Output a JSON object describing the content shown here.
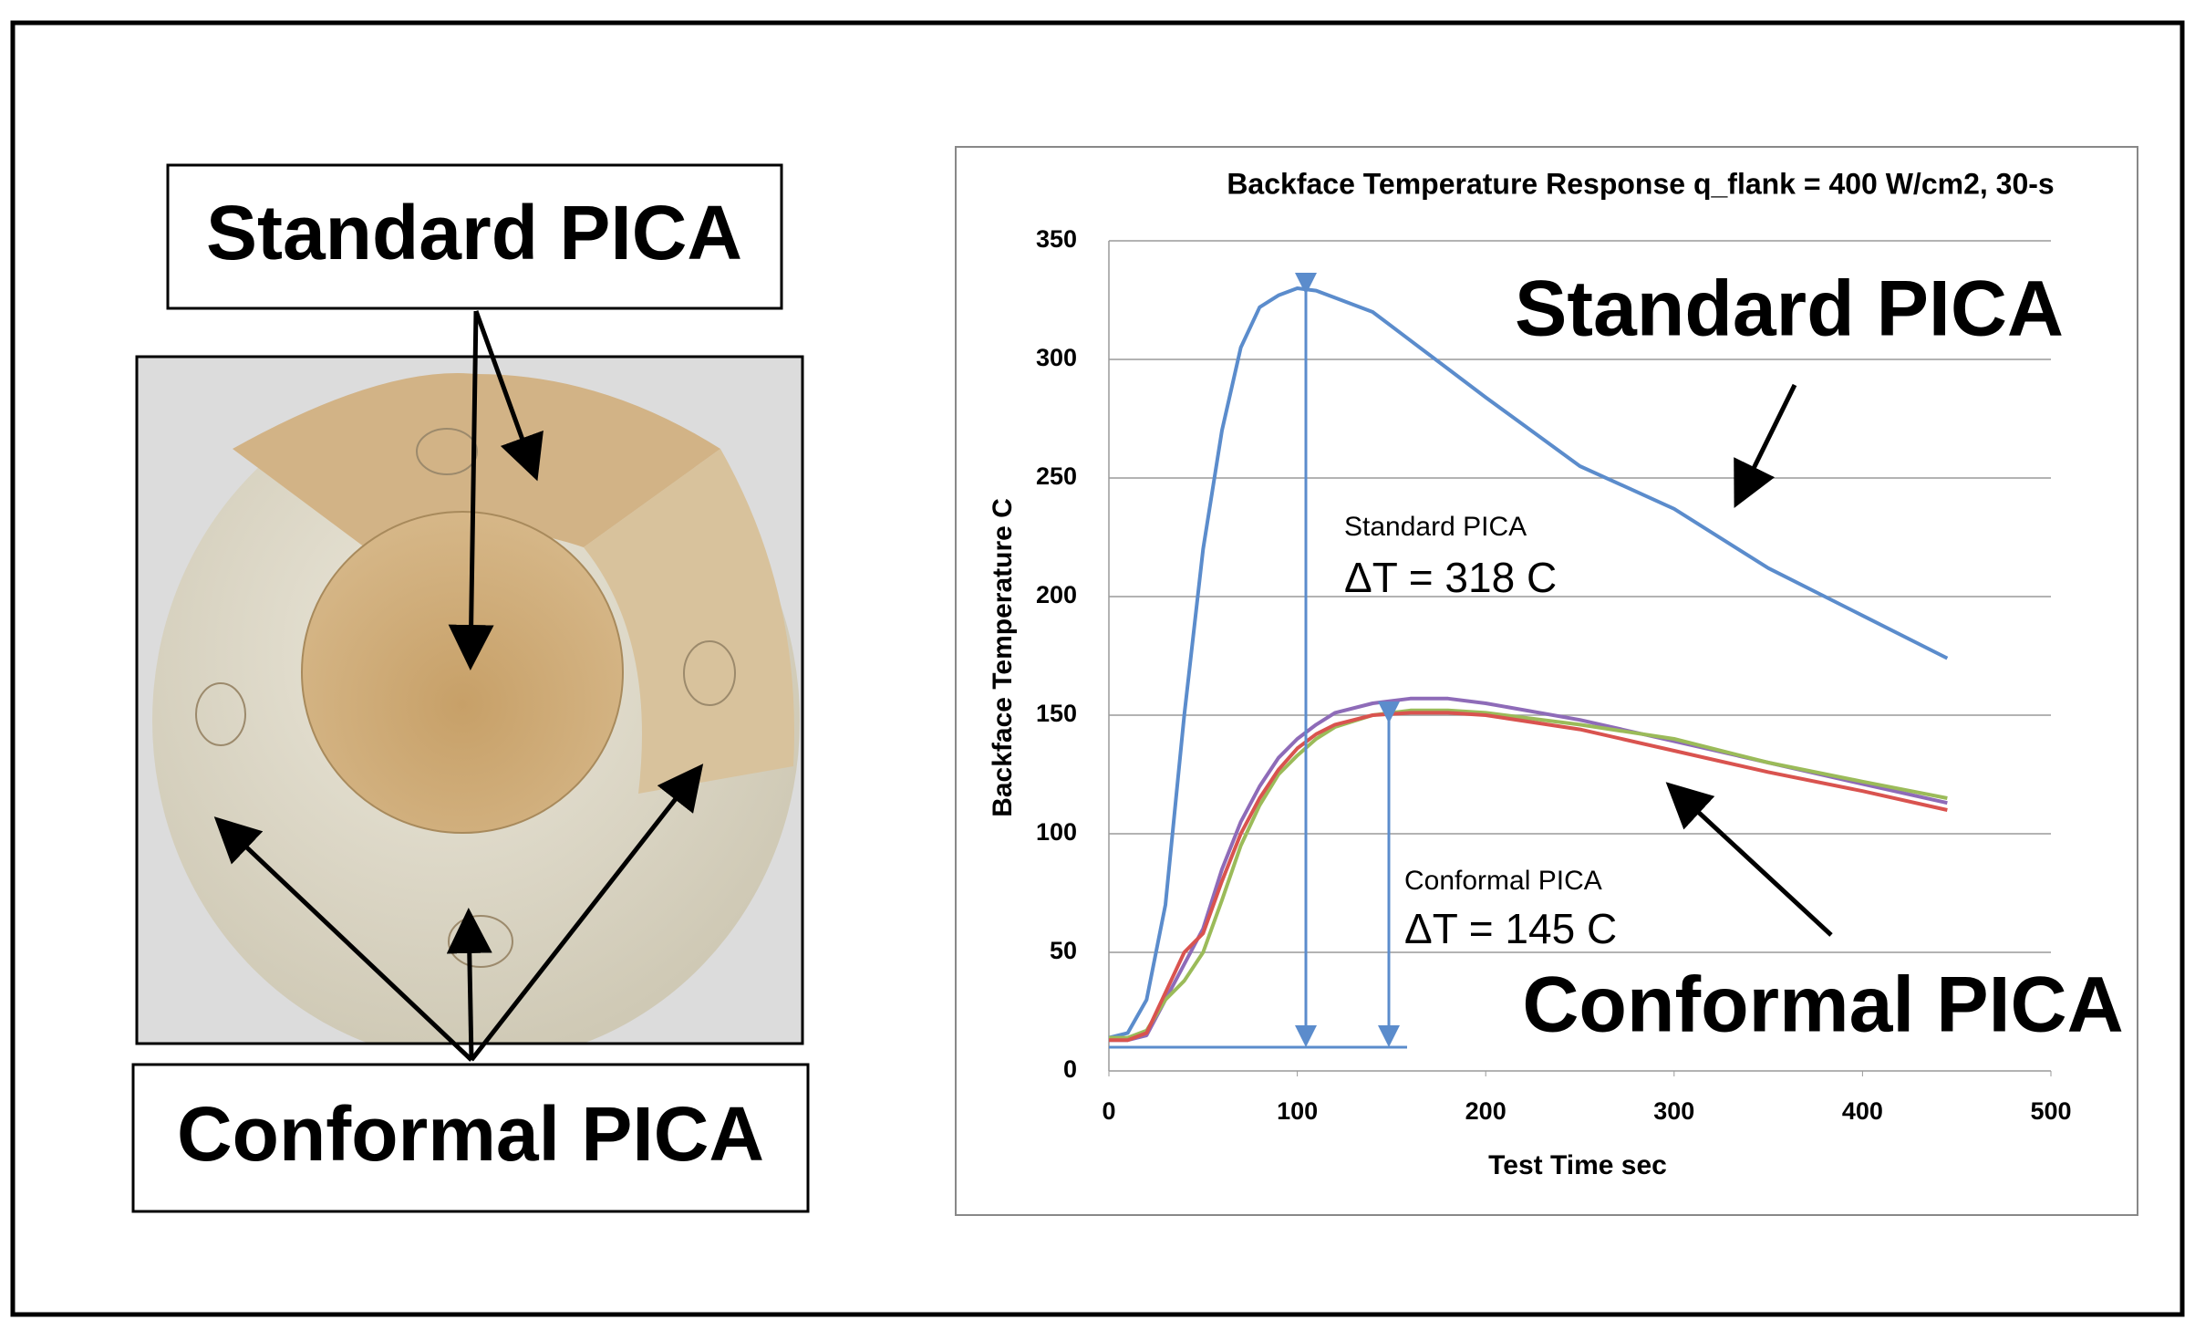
{
  "photo_labels": {
    "top": "Standard PICA",
    "bottom": "Conformal PICA"
  },
  "chart_data": {
    "type": "line",
    "title": "Backface Temperature Response q_flank = 400 W/cm2, 30-s",
    "x_label": "Test Time sec",
    "y_label": "Backface Temperature C",
    "annotations": [
      "Standard PICA",
      "Standard PICA",
      "ΔT = 318 C",
      "Conformal PICA",
      "ΔT = 145 C",
      "Conformal PICA"
    ],
    "x": [
      0,
      10,
      20,
      30,
      40,
      50,
      60,
      70,
      80,
      90,
      100,
      110,
      120,
      140,
      160,
      180,
      200,
      250,
      300,
      350,
      400,
      445
    ],
    "series": [
      {
        "color": "#5b8ccc",
        "values": [
          14,
          16,
          30,
          70,
          150,
          220,
          270,
          305,
          322,
          327,
          330,
          329,
          326,
          320,
          308,
          296,
          284,
          255,
          237,
          212,
          192,
          174
        ]
      },
      {
        "color": "#8e6bb8",
        "values": [
          13,
          13,
          15,
          30,
          45,
          60,
          85,
          105,
          120,
          132,
          140,
          146,
          151,
          155,
          157,
          157,
          155,
          148,
          139,
          130,
          121,
          113
        ]
      },
      {
        "color": "#9bbb59",
        "values": [
          14,
          14,
          17,
          30,
          38,
          50,
          72,
          95,
          112,
          125,
          133,
          140,
          145,
          150,
          152,
          152,
          151,
          146,
          140,
          130,
          122,
          115
        ]
      },
      {
        "color": "#d9534f",
        "values": [
          13,
          13,
          16,
          33,
          50,
          58,
          80,
          100,
          115,
          127,
          136,
          142,
          146,
          150,
          151,
          151,
          150,
          144,
          135,
          126,
          118,
          110
        ]
      }
    ],
    "xlim": [
      0,
      500
    ],
    "xticks": [
      0,
      100,
      200,
      300,
      400,
      500
    ],
    "ylim": [
      0,
      350
    ],
    "yticks": [
      0,
      50,
      100,
      150,
      200,
      250,
      300,
      350
    ],
    "grid": true
  }
}
